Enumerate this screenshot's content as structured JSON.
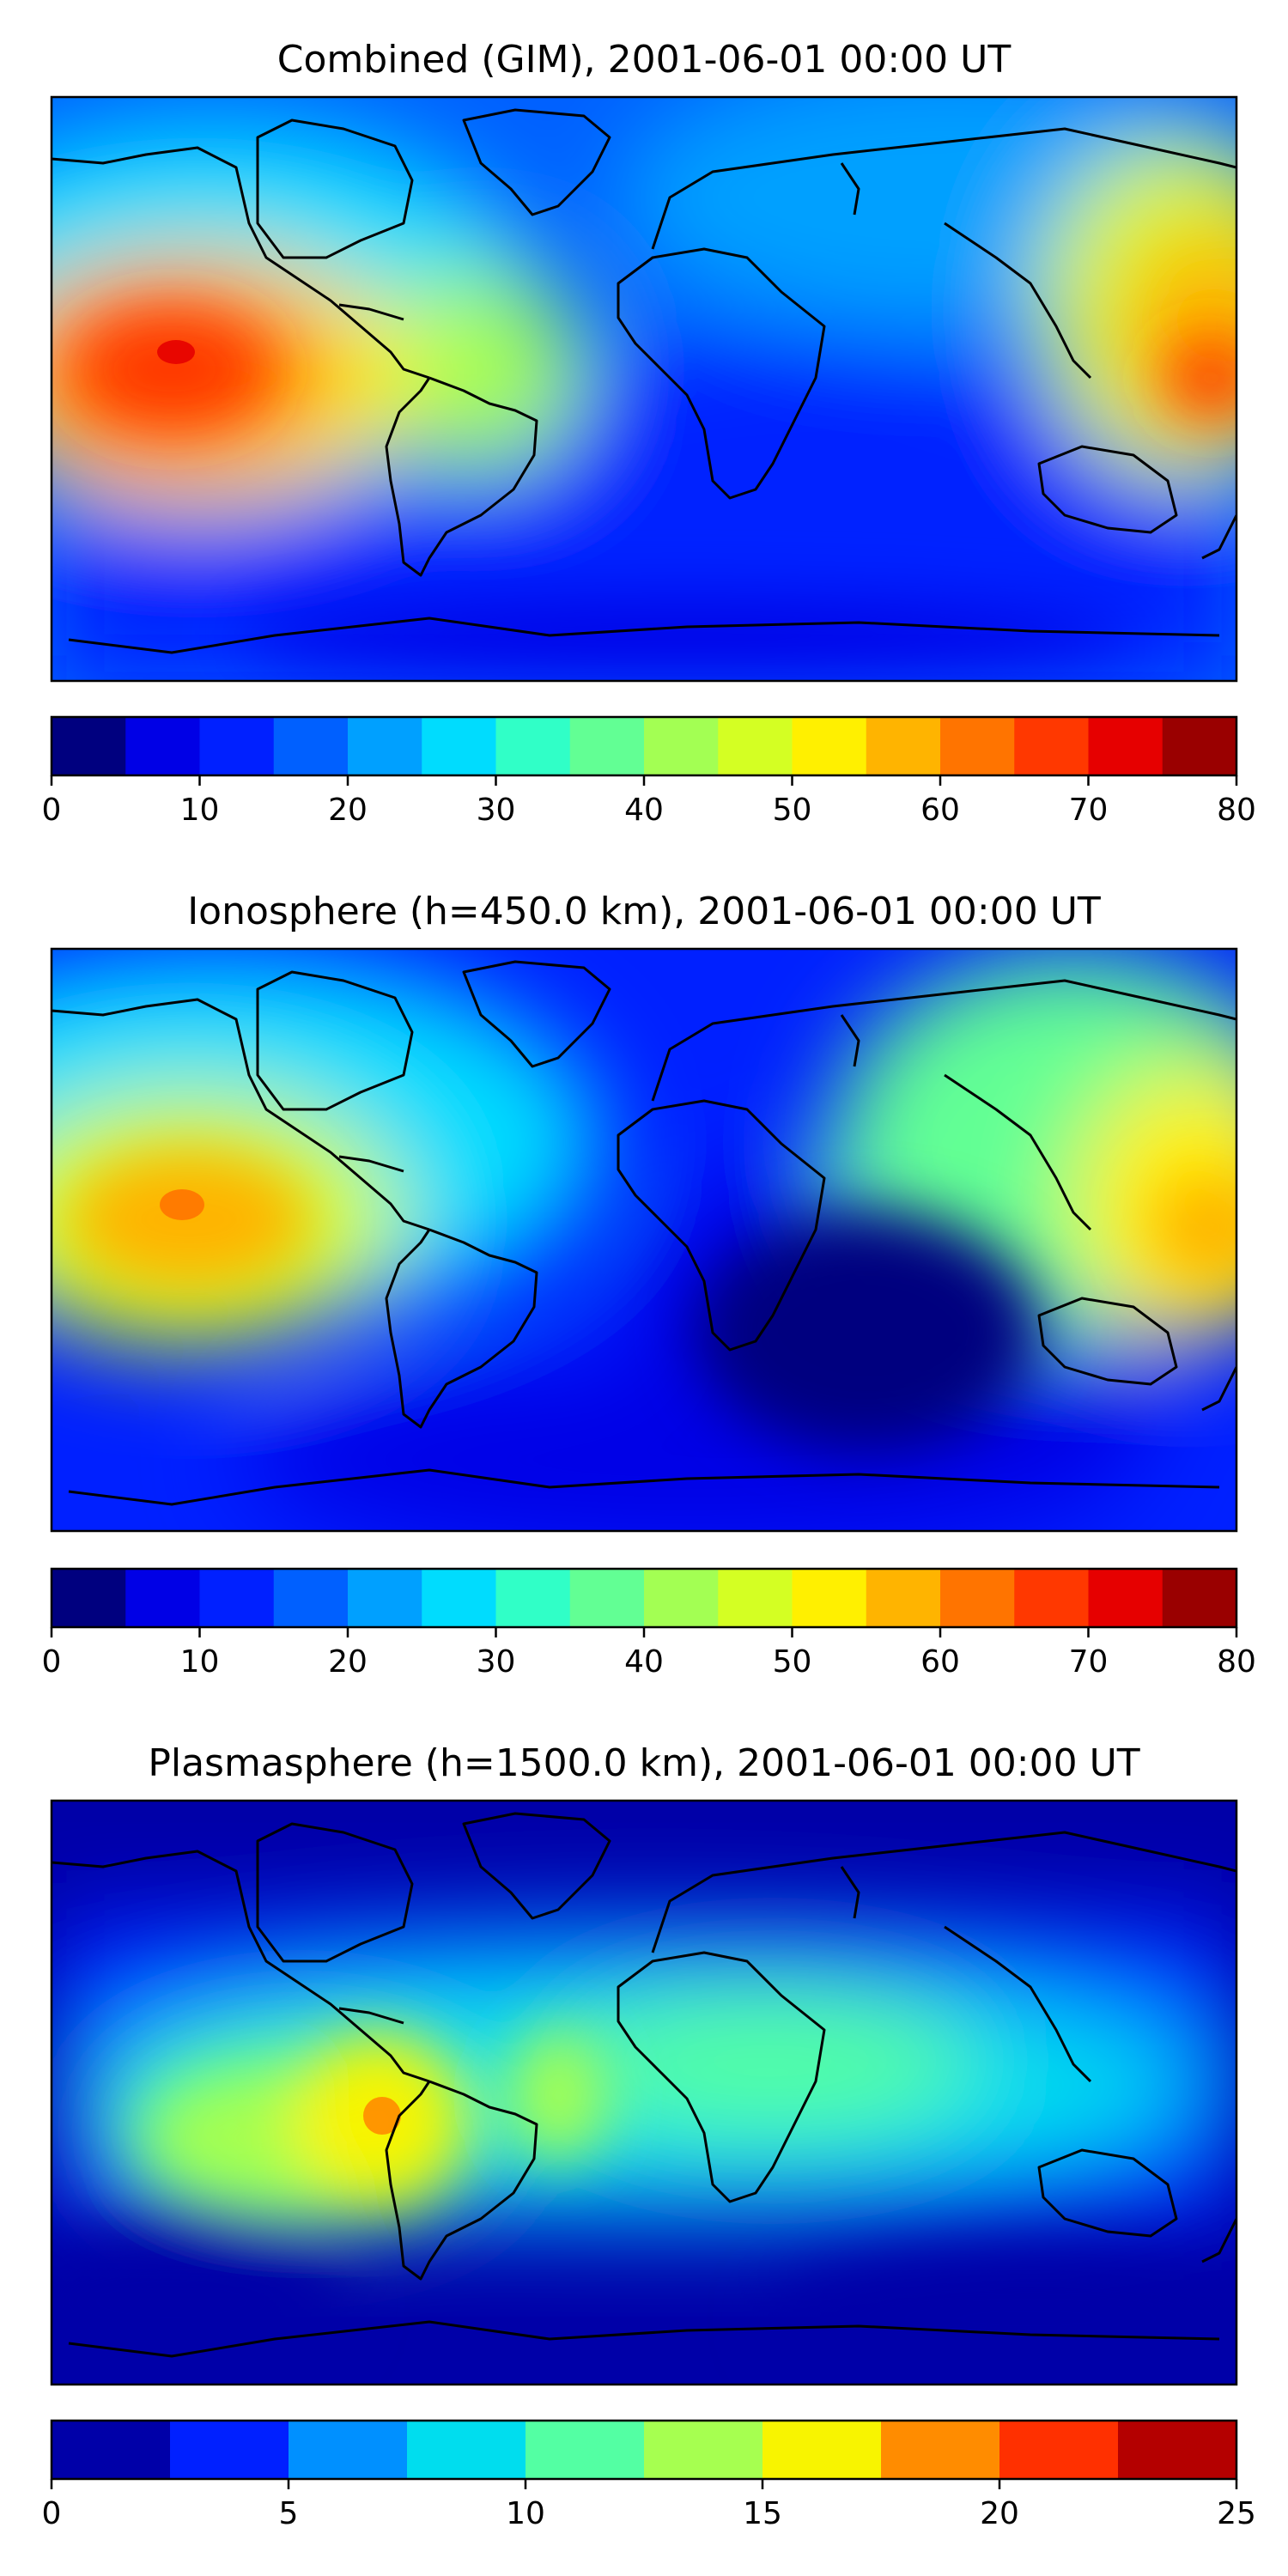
{
  "chart_data": [
    {
      "type": "heatmap",
      "title": "Combined (GIM), 2001-06-01 00:00 UT",
      "xlabel": "",
      "ylabel": "",
      "colorbar": {
        "min": 0,
        "max": 80,
        "step": 5,
        "ticks": [
          0,
          10,
          20,
          30,
          40,
          50,
          60,
          70,
          80
        ],
        "tick_labels": [
          "0",
          "10",
          "20",
          "30",
          "40",
          "50",
          "60",
          "70",
          "80"
        ],
        "colors": [
          "#00007f",
          "#0000e6",
          "#0020ff",
          "#0060ff",
          "#00a0ff",
          "#00dcfe",
          "#30ffc7",
          "#62ff94",
          "#a3ff53",
          "#d4ff23",
          "#fff000",
          "#ffb400",
          "#ff7400",
          "#ff3800",
          "#e60000",
          "#9a0000"
        ]
      },
      "grid": false,
      "features": [
        "coastlines"
      ],
      "cells": [
        {
          "lon": -150,
          "lat": 10,
          "value": 68
        },
        {
          "lon": -120,
          "lat": 10,
          "value": 58
        },
        {
          "lon": 150,
          "lat": 12,
          "value": 60
        },
        {
          "lon": 0,
          "lat": -20,
          "value": 10
        },
        {
          "lon": 60,
          "lat": -40,
          "value": 8
        },
        {
          "lon": -60,
          "lat": 0,
          "value": 42
        },
        {
          "lon": 100,
          "lat": 40,
          "value": 32
        }
      ]
    },
    {
      "type": "heatmap",
      "title": "Ionosphere  (h=450.0 km), 2001-06-01 00:00 UT",
      "xlabel": "",
      "ylabel": "",
      "colorbar": {
        "min": 0,
        "max": 80,
        "step": 5,
        "ticks": [
          0,
          10,
          20,
          30,
          40,
          50,
          60,
          70,
          80
        ],
        "tick_labels": [
          "0",
          "10",
          "20",
          "30",
          "40",
          "50",
          "60",
          "70",
          "80"
        ],
        "colors": [
          "#00007f",
          "#0000e6",
          "#0020ff",
          "#0060ff",
          "#00a0ff",
          "#00dcfe",
          "#30ffc7",
          "#62ff94",
          "#a3ff53",
          "#d4ff23",
          "#fff000",
          "#ffb400",
          "#ff7400",
          "#ff3800",
          "#e60000",
          "#9a0000"
        ]
      },
      "grid": false,
      "features": [
        "coastlines"
      ],
      "cells": [
        {
          "lon": -150,
          "lat": 10,
          "value": 60
        },
        {
          "lon": 160,
          "lat": 0,
          "value": 57
        },
        {
          "lon": 80,
          "lat": -20,
          "value": 4
        },
        {
          "lon": 30,
          "lat": -40,
          "value": 6
        },
        {
          "lon": -60,
          "lat": 0,
          "value": 35
        },
        {
          "lon": 120,
          "lat": 40,
          "value": 40
        }
      ]
    },
    {
      "type": "heatmap",
      "title": "Plasmasphere (h=1500.0 km), 2001-06-01 00:00 UT",
      "xlabel": "",
      "ylabel": "",
      "colorbar": {
        "min": 0,
        "max": 25,
        "step": 2.5,
        "ticks": [
          0,
          5,
          10,
          15,
          20,
          25
        ],
        "tick_labels": [
          "0",
          "5",
          "10",
          "15",
          "20",
          "25"
        ],
        "colors": [
          "#0000a8",
          "#0020ff",
          "#0090ff",
          "#00ddee",
          "#53ffa3",
          "#a6ff50",
          "#f8f400",
          "#ff8c00",
          "#ff3000",
          "#b40000"
        ]
      },
      "grid": false,
      "features": [
        "coastlines"
      ],
      "cells": [
        {
          "lon": -70,
          "lat": -10,
          "value": 18
        },
        {
          "lon": -110,
          "lat": -5,
          "value": 14
        },
        {
          "lon": 30,
          "lat": 10,
          "value": 11
        },
        {
          "lon": 100,
          "lat": 0,
          "value": 9
        },
        {
          "lon": -150,
          "lat": -50,
          "value": 1
        },
        {
          "lon": 60,
          "lat": -50,
          "value": 2
        }
      ]
    }
  ]
}
